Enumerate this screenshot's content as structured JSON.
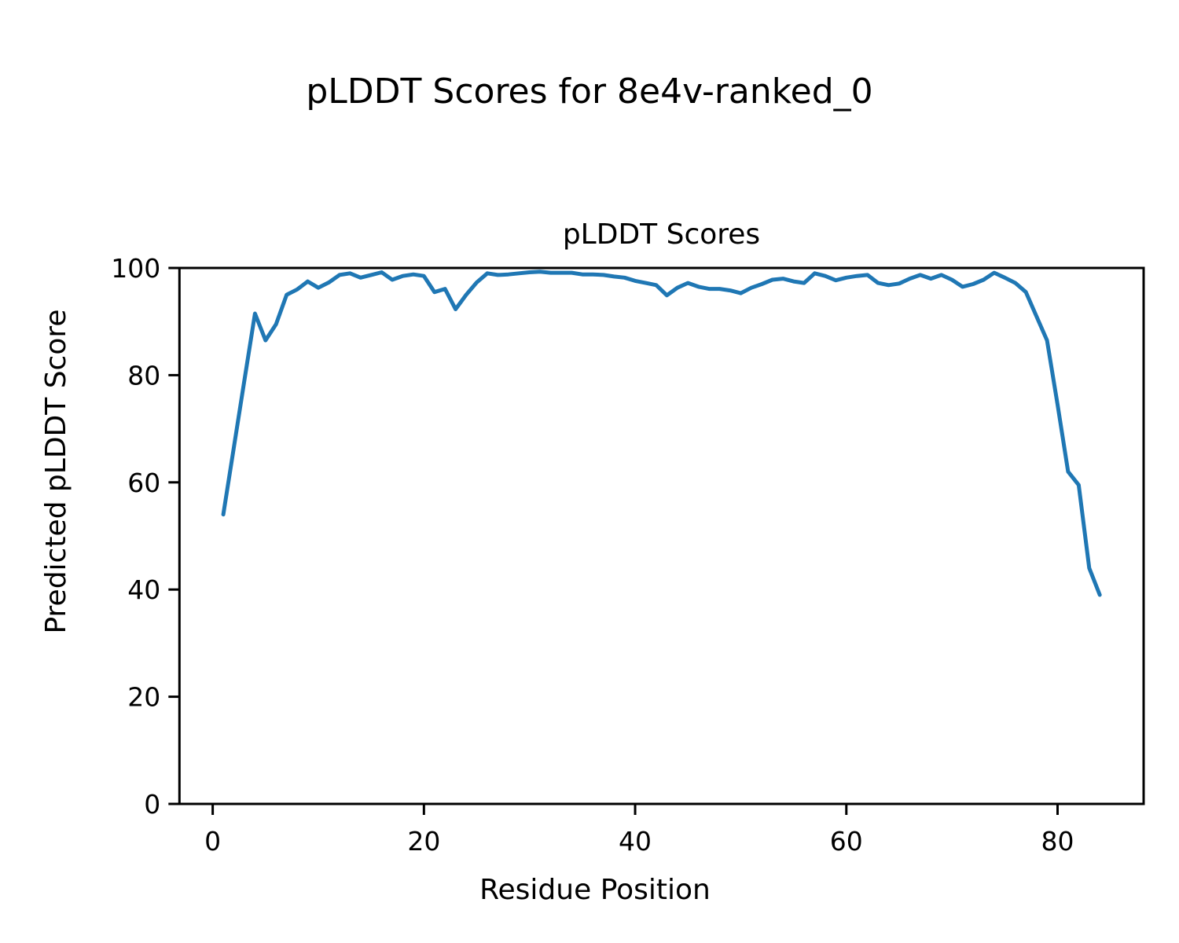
{
  "figure": {
    "suptitle": "pLDDT Scores for 8e4v-ranked_0",
    "axes_title": "pLDDT Scores",
    "xlabel": "Residue Position",
    "ylabel": "Predicted pLDDT Score"
  },
  "chart_data": {
    "type": "line",
    "title": "pLDDT Scores",
    "suptitle": "pLDDT Scores for 8e4v-ranked_0",
    "xlabel": "Residue Position",
    "ylabel": "Predicted pLDDT Score",
    "line_color": "#1f77b4",
    "grid": false,
    "legend": null,
    "xlim": [
      -3.15,
      88.15
    ],
    "ylim": [
      0,
      100
    ],
    "xticks": [
      0,
      20,
      40,
      60,
      80
    ],
    "yticks": [
      0,
      20,
      40,
      60,
      80,
      100
    ],
    "x": [
      1,
      2,
      3,
      4,
      5,
      6,
      7,
      8,
      9,
      10,
      11,
      12,
      13,
      14,
      15,
      16,
      17,
      18,
      19,
      20,
      21,
      22,
      23,
      24,
      25,
      26,
      27,
      28,
      29,
      30,
      31,
      32,
      33,
      34,
      35,
      36,
      37,
      38,
      39,
      40,
      41,
      42,
      43,
      44,
      45,
      46,
      47,
      48,
      49,
      50,
      51,
      52,
      53,
      54,
      55,
      56,
      57,
      58,
      59,
      60,
      61,
      62,
      63,
      64,
      65,
      66,
      67,
      68,
      69,
      70,
      71,
      72,
      73,
      74,
      75,
      76,
      77,
      78,
      79,
      80,
      81,
      82,
      83,
      84
    ],
    "y": [
      54,
      66.5,
      79,
      91.5,
      86.5,
      89.5,
      95,
      96,
      97.5,
      96.3,
      97.3,
      98.7,
      99,
      98.2,
      98.7,
      99.2,
      97.8,
      98.5,
      98.8,
      98.5,
      95.5,
      96.1,
      92.3,
      95,
      97.3,
      99,
      98.7,
      98.8,
      99,
      99.2,
      99.3,
      99.1,
      99.1,
      99.1,
      98.8,
      98.8,
      98.7,
      98.4,
      98.2,
      97.6,
      97.2,
      96.8,
      94.9,
      96.3,
      97.2,
      96.5,
      96.1,
      96.1,
      95.8,
      95.3,
      96.3,
      97,
      97.8,
      98,
      97.5,
      97.2,
      99,
      98.5,
      97.7,
      98.2,
      98.5,
      98.7,
      97.2,
      96.8,
      97.1,
      98,
      98.7,
      98,
      98.7,
      97.8,
      96.5,
      97,
      97.8,
      99.1,
      98.2,
      97.2,
      95.5,
      91,
      86.5,
      74.5,
      62,
      59.5,
      44,
      39
    ]
  }
}
